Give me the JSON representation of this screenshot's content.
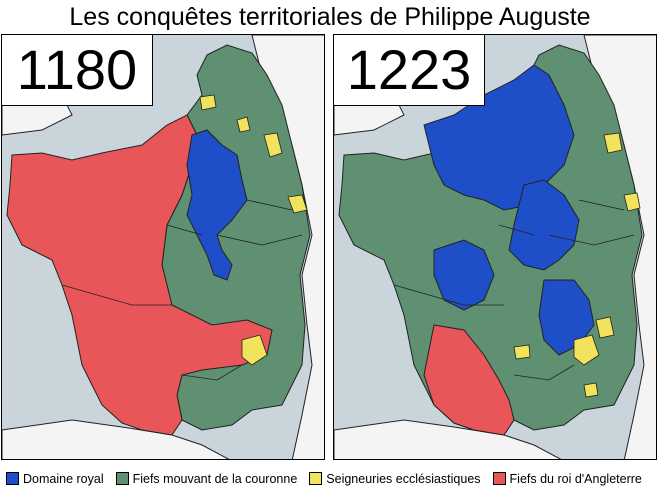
{
  "title": "Les conquêtes territoriales de Philippe Auguste",
  "maps": [
    {
      "year": "1180"
    },
    {
      "year": "1223"
    }
  ],
  "legend": [
    {
      "label": "Domaine royal",
      "color": "#1f4fc8"
    },
    {
      "label": "Fiefs mouvant de la couronne",
      "color": "#5f9072"
    },
    {
      "label": "Seigneuries ecclésiastiques",
      "color": "#f2e35c"
    },
    {
      "label": "Fiefs du roi d'Angleterre",
      "color": "#e8565a"
    }
  ],
  "colors": {
    "sea": "#c9d5da",
    "land_outside": "#f4f4f4",
    "border": "#222222"
  }
}
